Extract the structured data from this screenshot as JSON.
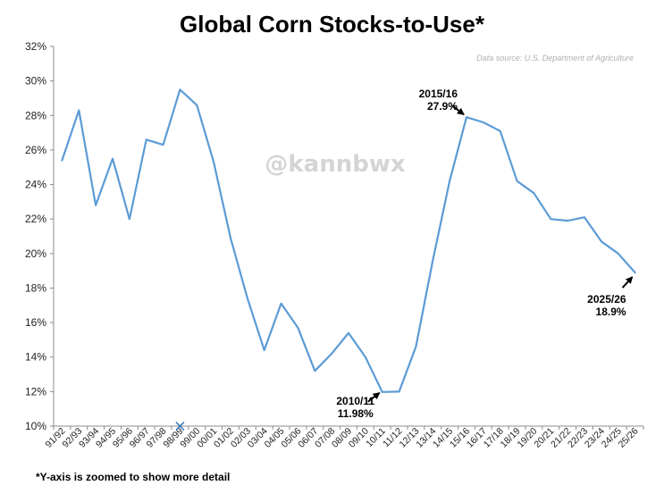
{
  "chart_data": {
    "type": "line",
    "title": "Global Corn Stocks-to-Use*",
    "source": "Data source: U.S. Department of Agriculture",
    "watermark": "@kannbwx",
    "footnote": "*Y-axis is zoomed to show more detail",
    "xlabel": "",
    "ylabel": "",
    "ylim": [
      10,
      32
    ],
    "yticks": [
      10,
      12,
      14,
      16,
      18,
      20,
      22,
      24,
      26,
      28,
      30,
      32
    ],
    "ytick_labels": [
      "10%",
      "12%",
      "14%",
      "16%",
      "18%",
      "20%",
      "22%",
      "24%",
      "26%",
      "28%",
      "30%",
      "32%"
    ],
    "grid": false,
    "line_color": "#5b9bd5",
    "marker_color": "#2e75b6",
    "categories": [
      "91/92",
      "92/93",
      "93/94",
      "94/95",
      "95/96",
      "96/97",
      "97/98",
      "98/99",
      "99/00",
      "00/01",
      "01/02",
      "02/03",
      "03/04",
      "04/05",
      "05/06",
      "06/07",
      "07/08",
      "08/09",
      "09/10",
      "10/11",
      "11/12",
      "12/13",
      "13/14",
      "14/15",
      "15/16",
      "16/17",
      "17/18",
      "18/19",
      "19/20",
      "20/21",
      "21/22",
      "22/23",
      "23/24",
      "24/25",
      "25/26"
    ],
    "series": [
      {
        "values": [
          25.4,
          28.3,
          22.8,
          25.5,
          22.0,
          26.6,
          26.3,
          29.5,
          28.6,
          25.3,
          20.9,
          17.4,
          14.4,
          17.1,
          15.7,
          13.2,
          14.2,
          15.4,
          14.0,
          11.98,
          12.0,
          14.6,
          19.6,
          24.2,
          27.9,
          27.6,
          27.1,
          24.2,
          23.5,
          22.0,
          21.9,
          22.1,
          20.7,
          20.0,
          18.9
        ]
      }
    ],
    "markers": [
      {
        "x": "98/99",
        "y": 10,
        "symbol": "×"
      }
    ],
    "annotations": [
      {
        "line1": "2015/16",
        "line2": "27.9%",
        "x": "15/16",
        "y": 27.9
      },
      {
        "line1": "2010/11",
        "line2": "11.98%",
        "x": "10/11",
        "y": 11.98
      },
      {
        "line1": "2025/26",
        "line2": "18.9%",
        "x": "25/26",
        "y": 18.9
      }
    ]
  }
}
